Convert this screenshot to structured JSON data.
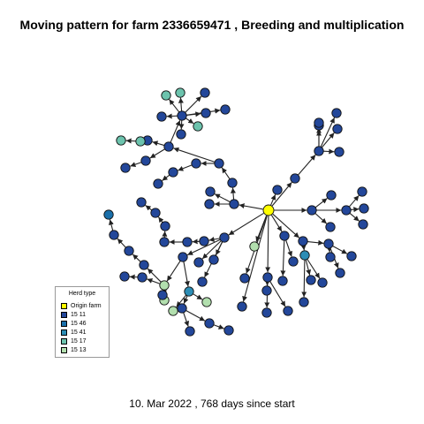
{
  "title": "Moving pattern for farm 2336659471 , Breeding and multiplication",
  "caption": "10. Mar 2022 ,  768 days since start",
  "legend": {
    "title": "Herd type",
    "items": [
      {
        "label": "Origin farm",
        "color": "#ffff00"
      },
      {
        "label": "15 11",
        "color": "#23479a"
      },
      {
        "label": "15 46",
        "color": "#1a6faa"
      },
      {
        "label": "15 41",
        "color": "#2c8db5"
      },
      {
        "label": "15 17",
        "color": "#6cc3ad"
      },
      {
        "label": "15 13",
        "color": "#b2dfae"
      }
    ]
  }
}
